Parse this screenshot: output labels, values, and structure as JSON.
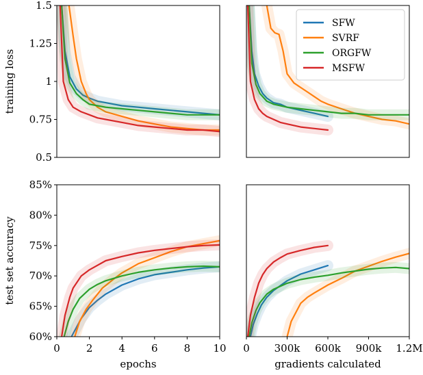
{
  "colors": {
    "sfw": "#1f77b4",
    "svrf": "#ff7f0e",
    "orgfw": "#2ca02c",
    "msfw": "#d62728"
  },
  "legend": {
    "location": "top-right",
    "entries": [
      "SFW",
      "SVRF",
      "ORGFW",
      "MSFW"
    ]
  },
  "chart_data": [
    {
      "id": "loss-vs-epochs",
      "type": "line",
      "xlabel": "",
      "ylabel": "training loss",
      "xlim": [
        0,
        10
      ],
      "ylim": [
        0.5,
        1.5
      ],
      "xticks": [],
      "yticks": [
        0.5,
        0.75,
        1,
        1.25,
        1.5
      ],
      "ytick_labels": [
        "0.5",
        "0.75",
        "1",
        "1.25",
        "1.5"
      ],
      "series": [
        {
          "name": "SFW",
          "x": [
            0.3,
            0.5,
            0.8,
            1.2,
            1.6,
            2,
            2.5,
            3,
            3.5,
            4,
            5,
            6,
            7,
            8,
            9,
            10
          ],
          "y": [
            1.5,
            1.2,
            1.03,
            0.95,
            0.91,
            0.89,
            0.87,
            0.86,
            0.85,
            0.84,
            0.83,
            0.82,
            0.81,
            0.8,
            0.79,
            0.78
          ]
        },
        {
          "name": "SVRF",
          "x": [
            0.75,
            1,
            1.2,
            1.5,
            1.8,
            2,
            2.5,
            3,
            4,
            5,
            6,
            7,
            8,
            9,
            10
          ],
          "y": [
            1.5,
            1.3,
            1.15,
            1.0,
            0.92,
            0.88,
            0.83,
            0.8,
            0.77,
            0.74,
            0.72,
            0.7,
            0.69,
            0.68,
            0.68
          ]
        },
        {
          "name": "ORGFW",
          "x": [
            0.3,
            0.5,
            0.8,
            1.2,
            1.6,
            2,
            2.5,
            3,
            4,
            5,
            6,
            7,
            8,
            9,
            10
          ],
          "y": [
            1.5,
            1.15,
            0.99,
            0.92,
            0.88,
            0.85,
            0.84,
            0.83,
            0.82,
            0.81,
            0.8,
            0.79,
            0.78,
            0.78,
            0.78
          ]
        },
        {
          "name": "MSFW",
          "x": [
            0.2,
            0.4,
            0.7,
            1,
            1.5,
            2,
            2.5,
            3,
            4,
            5,
            6,
            7,
            8,
            9,
            10
          ],
          "y": [
            1.5,
            1.0,
            0.88,
            0.83,
            0.8,
            0.78,
            0.76,
            0.75,
            0.73,
            0.71,
            0.7,
            0.69,
            0.68,
            0.68,
            0.67
          ]
        }
      ]
    },
    {
      "id": "loss-vs-gradients",
      "type": "line",
      "xlabel": "",
      "ylabel": "",
      "xlim": [
        0,
        1200000
      ],
      "ylim": [
        0.5,
        1.5
      ],
      "xticks": [],
      "yticks": [],
      "series": [
        {
          "name": "SFW",
          "x": [
            20000,
            40000,
            60000,
            90000,
            120000,
            150000,
            200000,
            250000,
            300000,
            400000,
            500000,
            600000
          ],
          "y": [
            1.5,
            1.2,
            1.05,
            0.97,
            0.92,
            0.89,
            0.86,
            0.85,
            0.83,
            0.81,
            0.79,
            0.77
          ]
        },
        {
          "name": "SVRF",
          "x": [
            150000,
            180000,
            210000,
            240000,
            270000,
            300000,
            350000,
            400000,
            450000,
            500000,
            550000,
            600000,
            700000,
            800000,
            900000,
            1000000,
            1100000,
            1200000
          ],
          "y": [
            1.5,
            1.35,
            1.32,
            1.31,
            1.2,
            1.05,
            0.99,
            0.96,
            0.93,
            0.9,
            0.87,
            0.85,
            0.82,
            0.79,
            0.77,
            0.75,
            0.74,
            0.72
          ]
        },
        {
          "name": "ORGFW",
          "x": [
            20000,
            40000,
            70000,
            100000,
            150000,
            200000,
            300000,
            400000,
            500000,
            600000,
            700000,
            800000,
            900000,
            1000000,
            1100000,
            1200000
          ],
          "y": [
            1.5,
            1.12,
            0.98,
            0.92,
            0.87,
            0.85,
            0.83,
            0.82,
            0.81,
            0.8,
            0.79,
            0.79,
            0.78,
            0.78,
            0.78,
            0.78
          ]
        },
        {
          "name": "MSFW",
          "x": [
            10000,
            30000,
            60000,
            90000,
            120000,
            150000,
            200000,
            250000,
            300000,
            400000,
            500000,
            600000
          ],
          "y": [
            1.5,
            1.0,
            0.88,
            0.82,
            0.79,
            0.77,
            0.75,
            0.73,
            0.72,
            0.7,
            0.69,
            0.68
          ]
        }
      ]
    },
    {
      "id": "accuracy-vs-epochs",
      "type": "line",
      "xlabel": "epochs",
      "ylabel": "test set accuracy",
      "xlim": [
        0,
        10
      ],
      "ylim": [
        60,
        85
      ],
      "xticks": [
        0,
        2,
        4,
        6,
        8,
        10
      ],
      "xtick_labels": [
        "0",
        "2",
        "4",
        "6",
        "8",
        "10"
      ],
      "yticks": [
        60,
        65,
        70,
        75,
        80,
        85
      ],
      "ytick_labels": [
        "60%",
        "65%",
        "70%",
        "75%",
        "80%",
        "85%"
      ],
      "series": [
        {
          "name": "SFW",
          "x": [
            0.9,
            1.2,
            1.5,
            2,
            2.5,
            3,
            4,
            5,
            6,
            7,
            8,
            9,
            10
          ],
          "y": [
            60,
            61.5,
            63,
            64.8,
            66,
            67,
            68.5,
            69.5,
            70.2,
            70.6,
            71,
            71.3,
            71.5
          ]
        },
        {
          "name": "SVRF",
          "x": [
            1.1,
            1.4,
            1.8,
            2.2,
            2.8,
            3.5,
            4,
            5,
            6,
            7,
            8,
            9,
            10
          ],
          "y": [
            60,
            62.5,
            64.5,
            66,
            68,
            69.5,
            70.5,
            72,
            73,
            74,
            74.8,
            75.3,
            75.8
          ]
        },
        {
          "name": "ORGFW",
          "x": [
            0.45,
            0.7,
            1,
            1.4,
            2,
            2.5,
            3,
            4,
            5,
            6,
            7,
            8,
            9,
            10
          ],
          "y": [
            60,
            62.5,
            64.5,
            66.3,
            67.8,
            68.6,
            69.2,
            70,
            70.6,
            71,
            71.3,
            71.5,
            71.6,
            71.5
          ]
        },
        {
          "name": "MSFW",
          "x": [
            0.3,
            0.5,
            0.8,
            1,
            1.5,
            2,
            3,
            4,
            5,
            6,
            7,
            8,
            9,
            10
          ],
          "y": [
            60,
            63.5,
            66.5,
            68,
            70,
            71,
            72.5,
            73.2,
            73.8,
            74.2,
            74.5,
            74.8,
            75,
            75.1
          ]
        }
      ]
    },
    {
      "id": "accuracy-vs-gradients",
      "type": "line",
      "xlabel": "gradients calculated",
      "ylabel": "",
      "xlim": [
        0,
        1200000
      ],
      "ylim": [
        60,
        85
      ],
      "xticks": [
        0,
        300000,
        600000,
        900000,
        1200000
      ],
      "xtick_labels": [
        "0",
        "300k",
        "600k",
        "900k",
        "1.2M"
      ],
      "yticks": [],
      "series": [
        {
          "name": "SFW",
          "x": [
            30000,
            50000,
            80000,
            110000,
            150000,
            200000,
            250000,
            300000,
            400000,
            500000,
            600000
          ],
          "y": [
            60,
            62,
            63.8,
            65.2,
            66.5,
            67.6,
            68.4,
            69.2,
            70.3,
            71,
            71.7
          ]
        },
        {
          "name": "SVRF",
          "x": [
            300000,
            330000,
            360000,
            400000,
            450000,
            500000,
            600000,
            700000,
            800000,
            900000,
            1000000,
            1100000,
            1200000
          ],
          "y": [
            60,
            62.5,
            63.8,
            65.5,
            66.5,
            67.2,
            68.5,
            69.6,
            70.8,
            71.6,
            72.4,
            73.1,
            73.7
          ]
        },
        {
          "name": "ORGFW",
          "x": [
            20000,
            40000,
            70000,
            100000,
            150000,
            200000,
            300000,
            400000,
            500000,
            600000,
            700000,
            800000,
            900000,
            1000000,
            1100000,
            1200000
          ],
          "y": [
            60,
            62.3,
            64.3,
            65.6,
            67,
            67.8,
            68.8,
            69.4,
            69.8,
            70.1,
            70.5,
            70.8,
            71.1,
            71.3,
            71.4,
            71.2
          ]
        },
        {
          "name": "MSFW",
          "x": [
            10000,
            30000,
            60000,
            90000,
            120000,
            150000,
            200000,
            250000,
            300000,
            400000,
            500000,
            600000
          ],
          "y": [
            60,
            63.5,
            66.5,
            68.8,
            70.2,
            71.2,
            72.3,
            73,
            73.6,
            74.2,
            74.7,
            75
          ]
        }
      ]
    }
  ]
}
